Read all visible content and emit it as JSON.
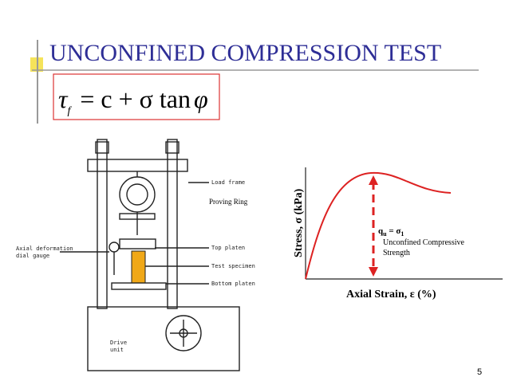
{
  "header": {
    "title": "UNCONFINED COMPRESSION TEST",
    "page_number": "5"
  },
  "formula": {
    "tau": "τ",
    "sub": "f",
    "rest": "= c + σ tan",
    "phi": "φ"
  },
  "apparatus": {
    "load_frame": "Load frame",
    "proving_ring": "Proving Ring",
    "top_platen": "Top platen",
    "test_specimen": "Test specimen",
    "bottom_platen": "Bottom platen",
    "dial_gauge": [
      "Axial deformation",
      "dial gauge"
    ],
    "drive_unit": [
      "Drive",
      "unit"
    ]
  },
  "graph": {
    "y_label": "Stress, σ (kPa)",
    "x_label": "Axial Strain, ε (%)",
    "annotation": {
      "q": "q",
      "q_sub": "u",
      "eq": " = σ",
      "sigma_sub": "1",
      "text": [
        "Unconfined Compressive",
        "Strength"
      ]
    }
  }
}
